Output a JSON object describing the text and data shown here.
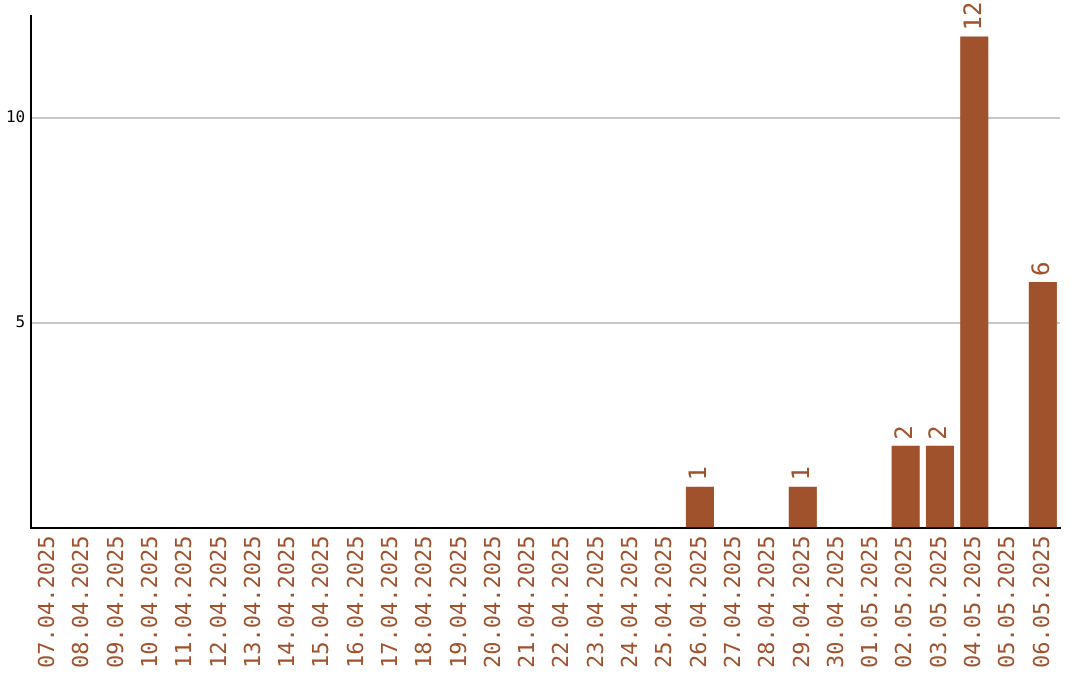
{
  "chart_data": {
    "type": "bar",
    "categories": [
      "07.04.2025",
      "08.04.2025",
      "09.04.2025",
      "10.04.2025",
      "11.04.2025",
      "12.04.2025",
      "13.04.2025",
      "14.04.2025",
      "15.04.2025",
      "16.04.2025",
      "17.04.2025",
      "18.04.2025",
      "19.04.2025",
      "20.04.2025",
      "21.04.2025",
      "22.04.2025",
      "23.04.2025",
      "24.04.2025",
      "25.04.2025",
      "26.04.2025",
      "27.04.2025",
      "28.04.2025",
      "29.04.2025",
      "30.04.2025",
      "01.05.2025",
      "02.05.2025",
      "03.05.2025",
      "04.05.2025",
      "05.05.2025",
      "06.05.2025"
    ],
    "values": [
      0,
      0,
      0,
      0,
      0,
      0,
      0,
      0,
      0,
      0,
      0,
      0,
      0,
      0,
      0,
      0,
      0,
      0,
      0,
      1,
      0,
      0,
      1,
      0,
      0,
      2,
      2,
      12,
      0,
      6
    ],
    "value_labels": [
      null,
      null,
      null,
      null,
      null,
      null,
      null,
      null,
      null,
      null,
      null,
      null,
      null,
      null,
      null,
      null,
      null,
      null,
      null,
      "1",
      null,
      null,
      "1",
      null,
      null,
      "2",
      "2",
      "12",
      null,
      "6"
    ],
    "color": "#a0522d",
    "ylim": [
      0,
      12.5
    ],
    "yticks": [
      5,
      10
    ],
    "grid": "y",
    "legend": false
  }
}
